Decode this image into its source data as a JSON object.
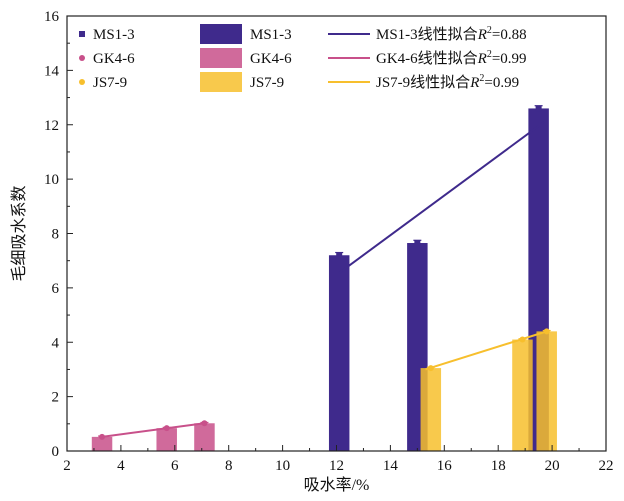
{
  "chart_data": {
    "type": "bar",
    "xlabel": "吸水率/%",
    "ylabel": "毛细吸水系数",
    "xlim": [
      2,
      22
    ],
    "ylim": [
      0,
      16
    ],
    "x_ticks": [
      "2",
      "4",
      "6",
      "8",
      "10",
      "12",
      "14",
      "16",
      "18",
      "20",
      "22"
    ],
    "y_ticks": [
      "0",
      "2",
      "4",
      "6",
      "8",
      "10",
      "12",
      "14",
      "16"
    ],
    "grid": false,
    "legend_position": "top-left",
    "series": [
      {
        "name": "MS1-3",
        "color": "#3f2a8c",
        "points": [
          {
            "x": 12.1,
            "y": 7.2,
            "err": 0.1
          },
          {
            "x": 15.0,
            "y": 7.65,
            "err": 0.1
          },
          {
            "x": 19.5,
            "y": 12.6,
            "err": 0.1
          }
        ],
        "fit": {
          "label": "MS1-3线性拟合",
          "r2": "=0.88",
          "x": [
            12.1,
            19.7
          ],
          "y": [
            6.55,
            12.1
          ]
        }
      },
      {
        "name": "GK4-6",
        "color": "#c8508a",
        "points": [
          {
            "x": 3.3,
            "y": 0.52,
            "err": 0.03
          },
          {
            "x": 5.7,
            "y": 0.84,
            "err": 0.03
          },
          {
            "x": 7.1,
            "y": 1.02,
            "err": 0.03
          }
        ],
        "fit": {
          "label": "GK4-6线性拟合",
          "r2": "=0.99",
          "x": [
            3.3,
            7.1
          ],
          "y": [
            0.52,
            1.02
          ]
        }
      },
      {
        "name": "JS7-9",
        "color": "#f7bf2d",
        "points": [
          {
            "x": 15.5,
            "y": 3.05,
            "err": 0.03
          },
          {
            "x": 18.9,
            "y": 4.1,
            "err": 0.03
          },
          {
            "x": 19.8,
            "y": 4.4,
            "err": 0.03
          }
        ],
        "fit": {
          "label": "JS7-9线性拟合",
          "r2": "=0.99",
          "x": [
            15.3,
            19.8
          ],
          "y": [
            3.0,
            4.4
          ]
        }
      }
    ]
  }
}
